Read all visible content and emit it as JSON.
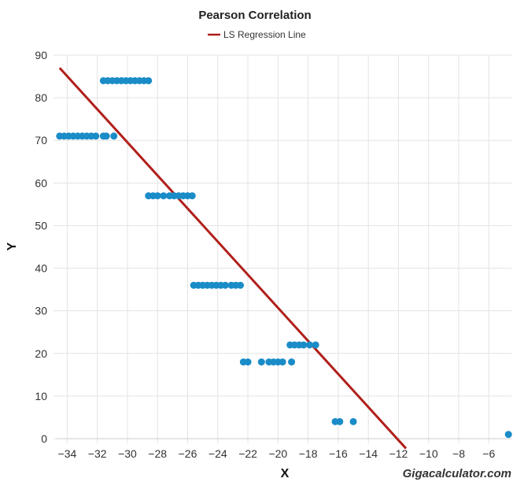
{
  "chart_data": {
    "type": "scatter",
    "title": "Pearson Correlation",
    "xlabel": "X",
    "ylabel": "Y",
    "xlim": [
      -34.7,
      -4.5
    ],
    "ylim": [
      0,
      90
    ],
    "xticks": [
      -34,
      -32,
      -30,
      -28,
      -26,
      -24,
      -22,
      -20,
      -18,
      -16,
      -14,
      -12,
      -10,
      -8,
      -6
    ],
    "yticks": [
      0,
      10,
      20,
      30,
      40,
      50,
      60,
      70,
      80,
      90
    ],
    "grid": true,
    "legend": {
      "position": "top-center",
      "entries": [
        "LS Regression Line"
      ]
    },
    "watermark": "Gigacalculator.com",
    "colors": {
      "points": "#1a8cc8",
      "regression_line": "#b01f1a"
    },
    "regression_line": {
      "name": "LS Regression Line",
      "x": [
        -34.5,
        -11.5
      ],
      "y": [
        87,
        -2.3
      ]
    },
    "points": [
      {
        "x": -34.5,
        "y": 71
      },
      {
        "x": -34.2,
        "y": 71
      },
      {
        "x": -33.9,
        "y": 71
      },
      {
        "x": -33.6,
        "y": 71
      },
      {
        "x": -33.3,
        "y": 71
      },
      {
        "x": -33.0,
        "y": 71
      },
      {
        "x": -32.7,
        "y": 71
      },
      {
        "x": -32.4,
        "y": 71
      },
      {
        "x": -32.1,
        "y": 71
      },
      {
        "x": -31.6,
        "y": 71
      },
      {
        "x": -31.4,
        "y": 71
      },
      {
        "x": -30.9,
        "y": 71
      },
      {
        "x": -31.6,
        "y": 84
      },
      {
        "x": -31.3,
        "y": 84
      },
      {
        "x": -31.0,
        "y": 84
      },
      {
        "x": -30.7,
        "y": 84
      },
      {
        "x": -30.4,
        "y": 84
      },
      {
        "x": -30.1,
        "y": 84
      },
      {
        "x": -29.8,
        "y": 84
      },
      {
        "x": -29.5,
        "y": 84
      },
      {
        "x": -29.2,
        "y": 84
      },
      {
        "x": -28.9,
        "y": 84
      },
      {
        "x": -28.6,
        "y": 84
      },
      {
        "x": -28.6,
        "y": 57
      },
      {
        "x": -28.3,
        "y": 57
      },
      {
        "x": -28.0,
        "y": 57
      },
      {
        "x": -27.6,
        "y": 57
      },
      {
        "x": -27.2,
        "y": 57
      },
      {
        "x": -26.9,
        "y": 57
      },
      {
        "x": -26.6,
        "y": 57
      },
      {
        "x": -26.3,
        "y": 57
      },
      {
        "x": -26.0,
        "y": 57
      },
      {
        "x": -25.7,
        "y": 57
      },
      {
        "x": -25.6,
        "y": 36
      },
      {
        "x": -25.3,
        "y": 36
      },
      {
        "x": -25.0,
        "y": 36
      },
      {
        "x": -24.7,
        "y": 36
      },
      {
        "x": -24.4,
        "y": 36
      },
      {
        "x": -24.1,
        "y": 36
      },
      {
        "x": -23.8,
        "y": 36
      },
      {
        "x": -23.5,
        "y": 36
      },
      {
        "x": -23.1,
        "y": 36
      },
      {
        "x": -22.8,
        "y": 36
      },
      {
        "x": -22.5,
        "y": 36
      },
      {
        "x": -22.3,
        "y": 18
      },
      {
        "x": -22.0,
        "y": 18
      },
      {
        "x": -21.1,
        "y": 18
      },
      {
        "x": -20.6,
        "y": 18
      },
      {
        "x": -20.3,
        "y": 18
      },
      {
        "x": -20.0,
        "y": 18
      },
      {
        "x": -19.7,
        "y": 18
      },
      {
        "x": -19.1,
        "y": 18
      },
      {
        "x": -19.2,
        "y": 22
      },
      {
        "x": -18.9,
        "y": 22
      },
      {
        "x": -18.6,
        "y": 22
      },
      {
        "x": -18.3,
        "y": 22
      },
      {
        "x": -17.9,
        "y": 22
      },
      {
        "x": -17.5,
        "y": 22
      },
      {
        "x": -16.2,
        "y": 4
      },
      {
        "x": -15.9,
        "y": 4
      },
      {
        "x": -15.0,
        "y": 4
      },
      {
        "x": -4.7,
        "y": 1
      }
    ]
  }
}
